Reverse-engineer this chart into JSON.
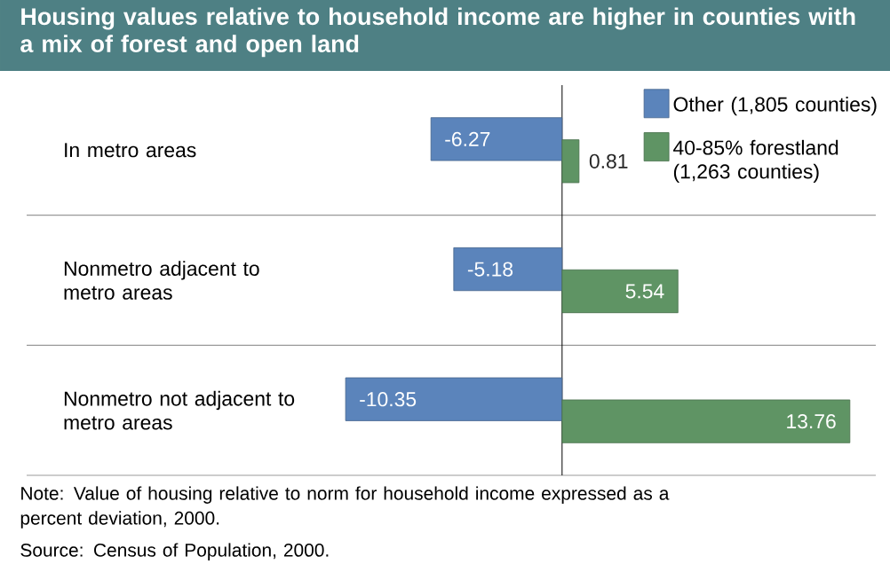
{
  "chart_data": {
    "type": "bar",
    "orientation": "horizontal",
    "title": "Housing values relative to household income are higher in counties with a mix of forest and open land",
    "categories": [
      "In metro areas",
      "Nonmetro adjacent to metro areas",
      "Nonmetro not adjacent to metro areas"
    ],
    "series": [
      {
        "name": "Other (1,805 counties)",
        "color": "#5b84bb",
        "values": [
          -6.27,
          -5.18,
          -10.35
        ]
      },
      {
        "name": "40-85% forestland (1,263 counties)",
        "color": "#5f9464",
        "values": [
          0.81,
          5.54,
          13.76
        ]
      }
    ],
    "xlim": [
      -25.6,
      15.0
    ],
    "tick_labels": "y",
    "data_labels": true,
    "legend": "top right",
    "annotations": [
      "Note:  Value of housing relative to norm for household income expressed as a percent deviation, 2000.",
      "Source:  Census of Population, 2000."
    ]
  }
}
